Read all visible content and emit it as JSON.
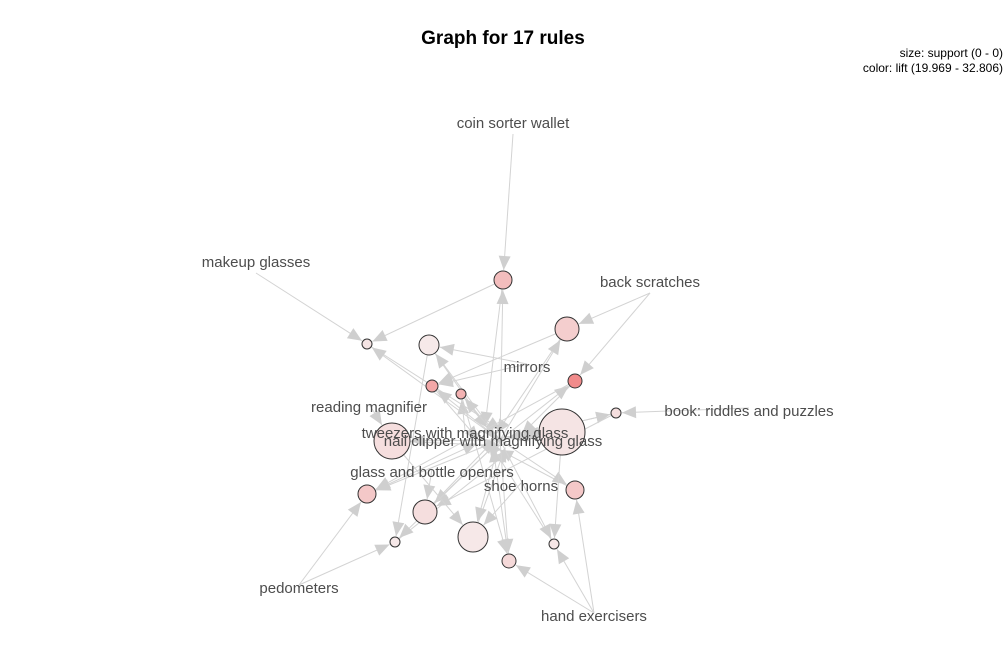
{
  "title": "Graph for 17 rules",
  "legend": {
    "size": "size: support (0 - 0)",
    "color": "color: lift (19.969 - 32.806)"
  },
  "items": [
    "coin sorter wallet",
    "makeup glasses",
    "back scratches",
    "mirrors",
    "reading magnifier",
    "book: riddles and puzzles",
    "tweezers with magnifying glass",
    "nail clipper with magnifying glass",
    "glass and bottle openers",
    "shoe horns",
    "pedometers",
    "hand exercisers"
  ],
  "colors": {
    "edge": "#d3d3d3",
    "arrow": "#cfcfcf",
    "node_stroke": "#333333",
    "lift_low": "#f6efef",
    "lift_high": "#f08080"
  }
}
